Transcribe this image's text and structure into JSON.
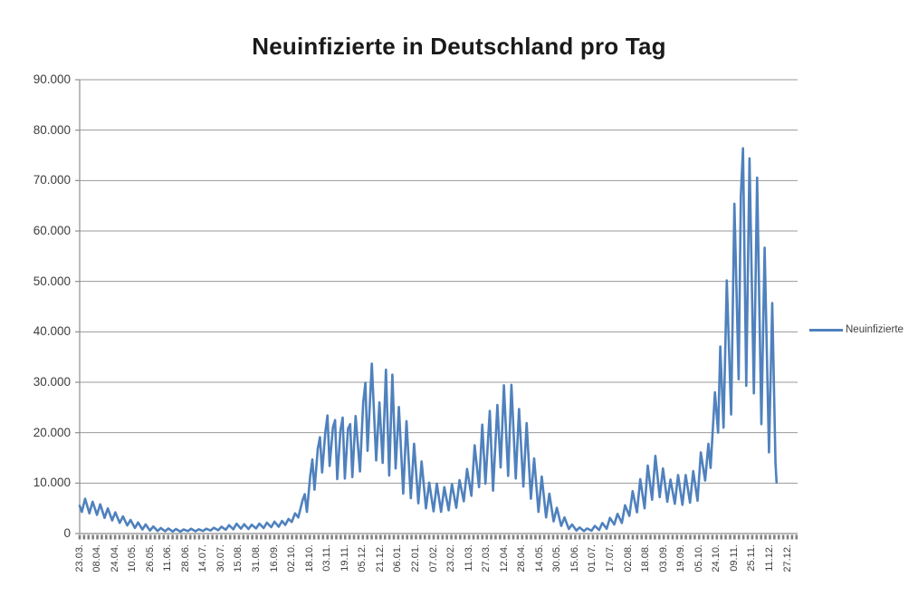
{
  "title": "Neuinfizierte in Deutschland pro Tag",
  "legend": {
    "label": "Neuinfizierte"
  },
  "colors": {
    "series": "#4F81BD",
    "gridline": "#9a9a9a",
    "axis": "#8e8e8e",
    "tick": "#808080",
    "title_text": "#1a1a1a",
    "label_text": "#3d3d3d"
  },
  "chart_data": {
    "type": "line",
    "title": "Neuinfizierte in Deutschland pro Tag",
    "xlabel": "",
    "ylabel": "",
    "ylim": [
      0,
      90000
    ],
    "grid": true,
    "legend_position": "right",
    "y_tick_labels": [
      "0",
      "10.000",
      "20.000",
      "30.000",
      "40.000",
      "50.000",
      "60.000",
      "70.000",
      "80.000",
      "90.000"
    ],
    "x_tick_labels": [
      "23.03.",
      "08.04.",
      "24.04.",
      "10.05.",
      "26.05.",
      "11.06.",
      "28.06.",
      "14.07.",
      "30.07.",
      "15.08.",
      "31.08.",
      "16.09.",
      "02.10.",
      "18.10.",
      "03.11.",
      "19.11.",
      "05.12.",
      "21.12.",
      "06.01.",
      "22.01.",
      "07.02.",
      "23.02.",
      "11.03.",
      "27.03.",
      "12.04.",
      "28.04.",
      "14.05.",
      "30.05.",
      "15.06.",
      "01.07.",
      "17.07.",
      "02.08.",
      "18.08.",
      "03.09.",
      "19.09.",
      "05.10.",
      "24.10.",
      "09.11.",
      "25.11.",
      "11.12.",
      "27.12."
    ],
    "x_label_interval": 16,
    "total_categories": 650,
    "data_categories": 631,
    "day_max": 644,
    "minor_tick_step_categories": 4,
    "series": [
      {
        "name": "Neuinfizierte",
        "color": "#4F81BD",
        "points_day_value": [
          [
            0,
            5500
          ],
          [
            2,
            4300
          ],
          [
            5,
            6900
          ],
          [
            9,
            4000
          ],
          [
            12,
            6300
          ],
          [
            16,
            3700
          ],
          [
            19,
            5800
          ],
          [
            23,
            3100
          ],
          [
            26,
            5000
          ],
          [
            30,
            2600
          ],
          [
            33,
            4200
          ],
          [
            37,
            2100
          ],
          [
            40,
            3400
          ],
          [
            44,
            1600
          ],
          [
            47,
            2700
          ],
          [
            51,
            1100
          ],
          [
            54,
            2200
          ],
          [
            58,
            800
          ],
          [
            61,
            1800
          ],
          [
            65,
            600
          ],
          [
            68,
            1400
          ],
          [
            72,
            500
          ],
          [
            75,
            1100
          ],
          [
            79,
            450
          ],
          [
            82,
            1000
          ],
          [
            86,
            400
          ],
          [
            89,
            900
          ],
          [
            93,
            380
          ],
          [
            96,
            800
          ],
          [
            100,
            480
          ],
          [
            103,
            950
          ],
          [
            107,
            450
          ],
          [
            110,
            850
          ],
          [
            114,
            500
          ],
          [
            117,
            950
          ],
          [
            121,
            600
          ],
          [
            124,
            1150
          ],
          [
            128,
            650
          ],
          [
            131,
            1350
          ],
          [
            135,
            750
          ],
          [
            138,
            1650
          ],
          [
            142,
            850
          ],
          [
            145,
            1950
          ],
          [
            149,
            950
          ],
          [
            152,
            1850
          ],
          [
            156,
            900
          ],
          [
            159,
            1750
          ],
          [
            163,
            1000
          ],
          [
            166,
            1950
          ],
          [
            170,
            1100
          ],
          [
            173,
            2150
          ],
          [
            177,
            1250
          ],
          [
            180,
            2350
          ],
          [
            184,
            1350
          ],
          [
            187,
            2500
          ],
          [
            190,
            1700
          ],
          [
            193,
            2900
          ],
          [
            196,
            2300
          ],
          [
            199,
            4000
          ],
          [
            202,
            3200
          ],
          [
            206,
            6600
          ],
          [
            208,
            7800
          ],
          [
            210,
            4300
          ],
          [
            213,
            11300
          ],
          [
            215,
            14700
          ],
          [
            217,
            8700
          ],
          [
            220,
            16800
          ],
          [
            222,
            19100
          ],
          [
            224,
            12100
          ],
          [
            227,
            20000
          ],
          [
            229,
            23400
          ],
          [
            231,
            13400
          ],
          [
            234,
            21000
          ],
          [
            236,
            22500
          ],
          [
            238,
            10800
          ],
          [
            241,
            20500
          ],
          [
            243,
            23000
          ],
          [
            245,
            10900
          ],
          [
            248,
            20800
          ],
          [
            250,
            21700
          ],
          [
            252,
            11200
          ],
          [
            255,
            23300
          ],
          [
            259,
            12300
          ],
          [
            262,
            26000
          ],
          [
            264,
            29900
          ],
          [
            266,
            16400
          ],
          [
            270,
            33700
          ],
          [
            274,
            14500
          ],
          [
            277,
            26000
          ],
          [
            280,
            14000
          ],
          [
            283,
            32500
          ],
          [
            286,
            11500
          ],
          [
            289,
            31500
          ],
          [
            292,
            12900
          ],
          [
            295,
            25100
          ],
          [
            299,
            7900
          ],
          [
            302,
            22300
          ],
          [
            306,
            7000
          ],
          [
            309,
            17800
          ],
          [
            313,
            6000
          ],
          [
            316,
            14300
          ],
          [
            320,
            5000
          ],
          [
            323,
            10100
          ],
          [
            327,
            4400
          ],
          [
            330,
            9900
          ],
          [
            334,
            4300
          ],
          [
            337,
            9200
          ],
          [
            341,
            4600
          ],
          [
            344,
            9800
          ],
          [
            348,
            5100
          ],
          [
            351,
            10600
          ],
          [
            355,
            6400
          ],
          [
            358,
            12800
          ],
          [
            362,
            7500
          ],
          [
            365,
            17500
          ],
          [
            369,
            9200
          ],
          [
            372,
            21600
          ],
          [
            375,
            9900
          ],
          [
            379,
            24300
          ],
          [
            382,
            8500
          ],
          [
            386,
            25500
          ],
          [
            389,
            13100
          ],
          [
            392,
            29400
          ],
          [
            396,
            11400
          ],
          [
            399,
            29500
          ],
          [
            403,
            10900
          ],
          [
            406,
            24700
          ],
          [
            410,
            9300
          ],
          [
            413,
            21900
          ],
          [
            417,
            6900
          ],
          [
            420,
            14900
          ],
          [
            424,
            4300
          ],
          [
            427,
            11300
          ],
          [
            431,
            3200
          ],
          [
            434,
            7900
          ],
          [
            438,
            2400
          ],
          [
            441,
            5100
          ],
          [
            445,
            1500
          ],
          [
            448,
            3200
          ],
          [
            452,
            900
          ],
          [
            455,
            1800
          ],
          [
            459,
            600
          ],
          [
            462,
            1200
          ],
          [
            466,
            500
          ],
          [
            469,
            1000
          ],
          [
            473,
            550
          ],
          [
            476,
            1500
          ],
          [
            480,
            700
          ],
          [
            483,
            2100
          ],
          [
            487,
            950
          ],
          [
            490,
            3100
          ],
          [
            494,
            1800
          ],
          [
            497,
            3900
          ],
          [
            501,
            2100
          ],
          [
            504,
            5600
          ],
          [
            508,
            3500
          ],
          [
            511,
            8400
          ],
          [
            515,
            4200
          ],
          [
            518,
            10800
          ],
          [
            522,
            5000
          ],
          [
            525,
            13500
          ],
          [
            529,
            6700
          ],
          [
            532,
            15400
          ],
          [
            536,
            7200
          ],
          [
            539,
            12900
          ],
          [
            543,
            6300
          ],
          [
            546,
            10700
          ],
          [
            550,
            5900
          ],
          [
            553,
            11600
          ],
          [
            557,
            5700
          ],
          [
            560,
            11600
          ],
          [
            564,
            6100
          ],
          [
            567,
            12400
          ],
          [
            571,
            6500
          ],
          [
            574,
            16100
          ],
          [
            578,
            10500
          ],
          [
            581,
            17800
          ],
          [
            583,
            13000
          ],
          [
            587,
            28000
          ],
          [
            590,
            20000
          ],
          [
            592,
            37100
          ],
          [
            595,
            21000
          ],
          [
            598,
            50200
          ],
          [
            602,
            23600
          ],
          [
            605,
            65400
          ],
          [
            609,
            30600
          ],
          [
            611,
            66900
          ],
          [
            613,
            76400
          ],
          [
            616,
            29300
          ],
          [
            619,
            74400
          ],
          [
            623,
            27800
          ],
          [
            626,
            70600
          ],
          [
            630,
            21700
          ],
          [
            633,
            56700
          ],
          [
            637,
            16100
          ],
          [
            640,
            45700
          ],
          [
            643,
            13900
          ],
          [
            644,
            10100
          ]
        ]
      }
    ]
  }
}
